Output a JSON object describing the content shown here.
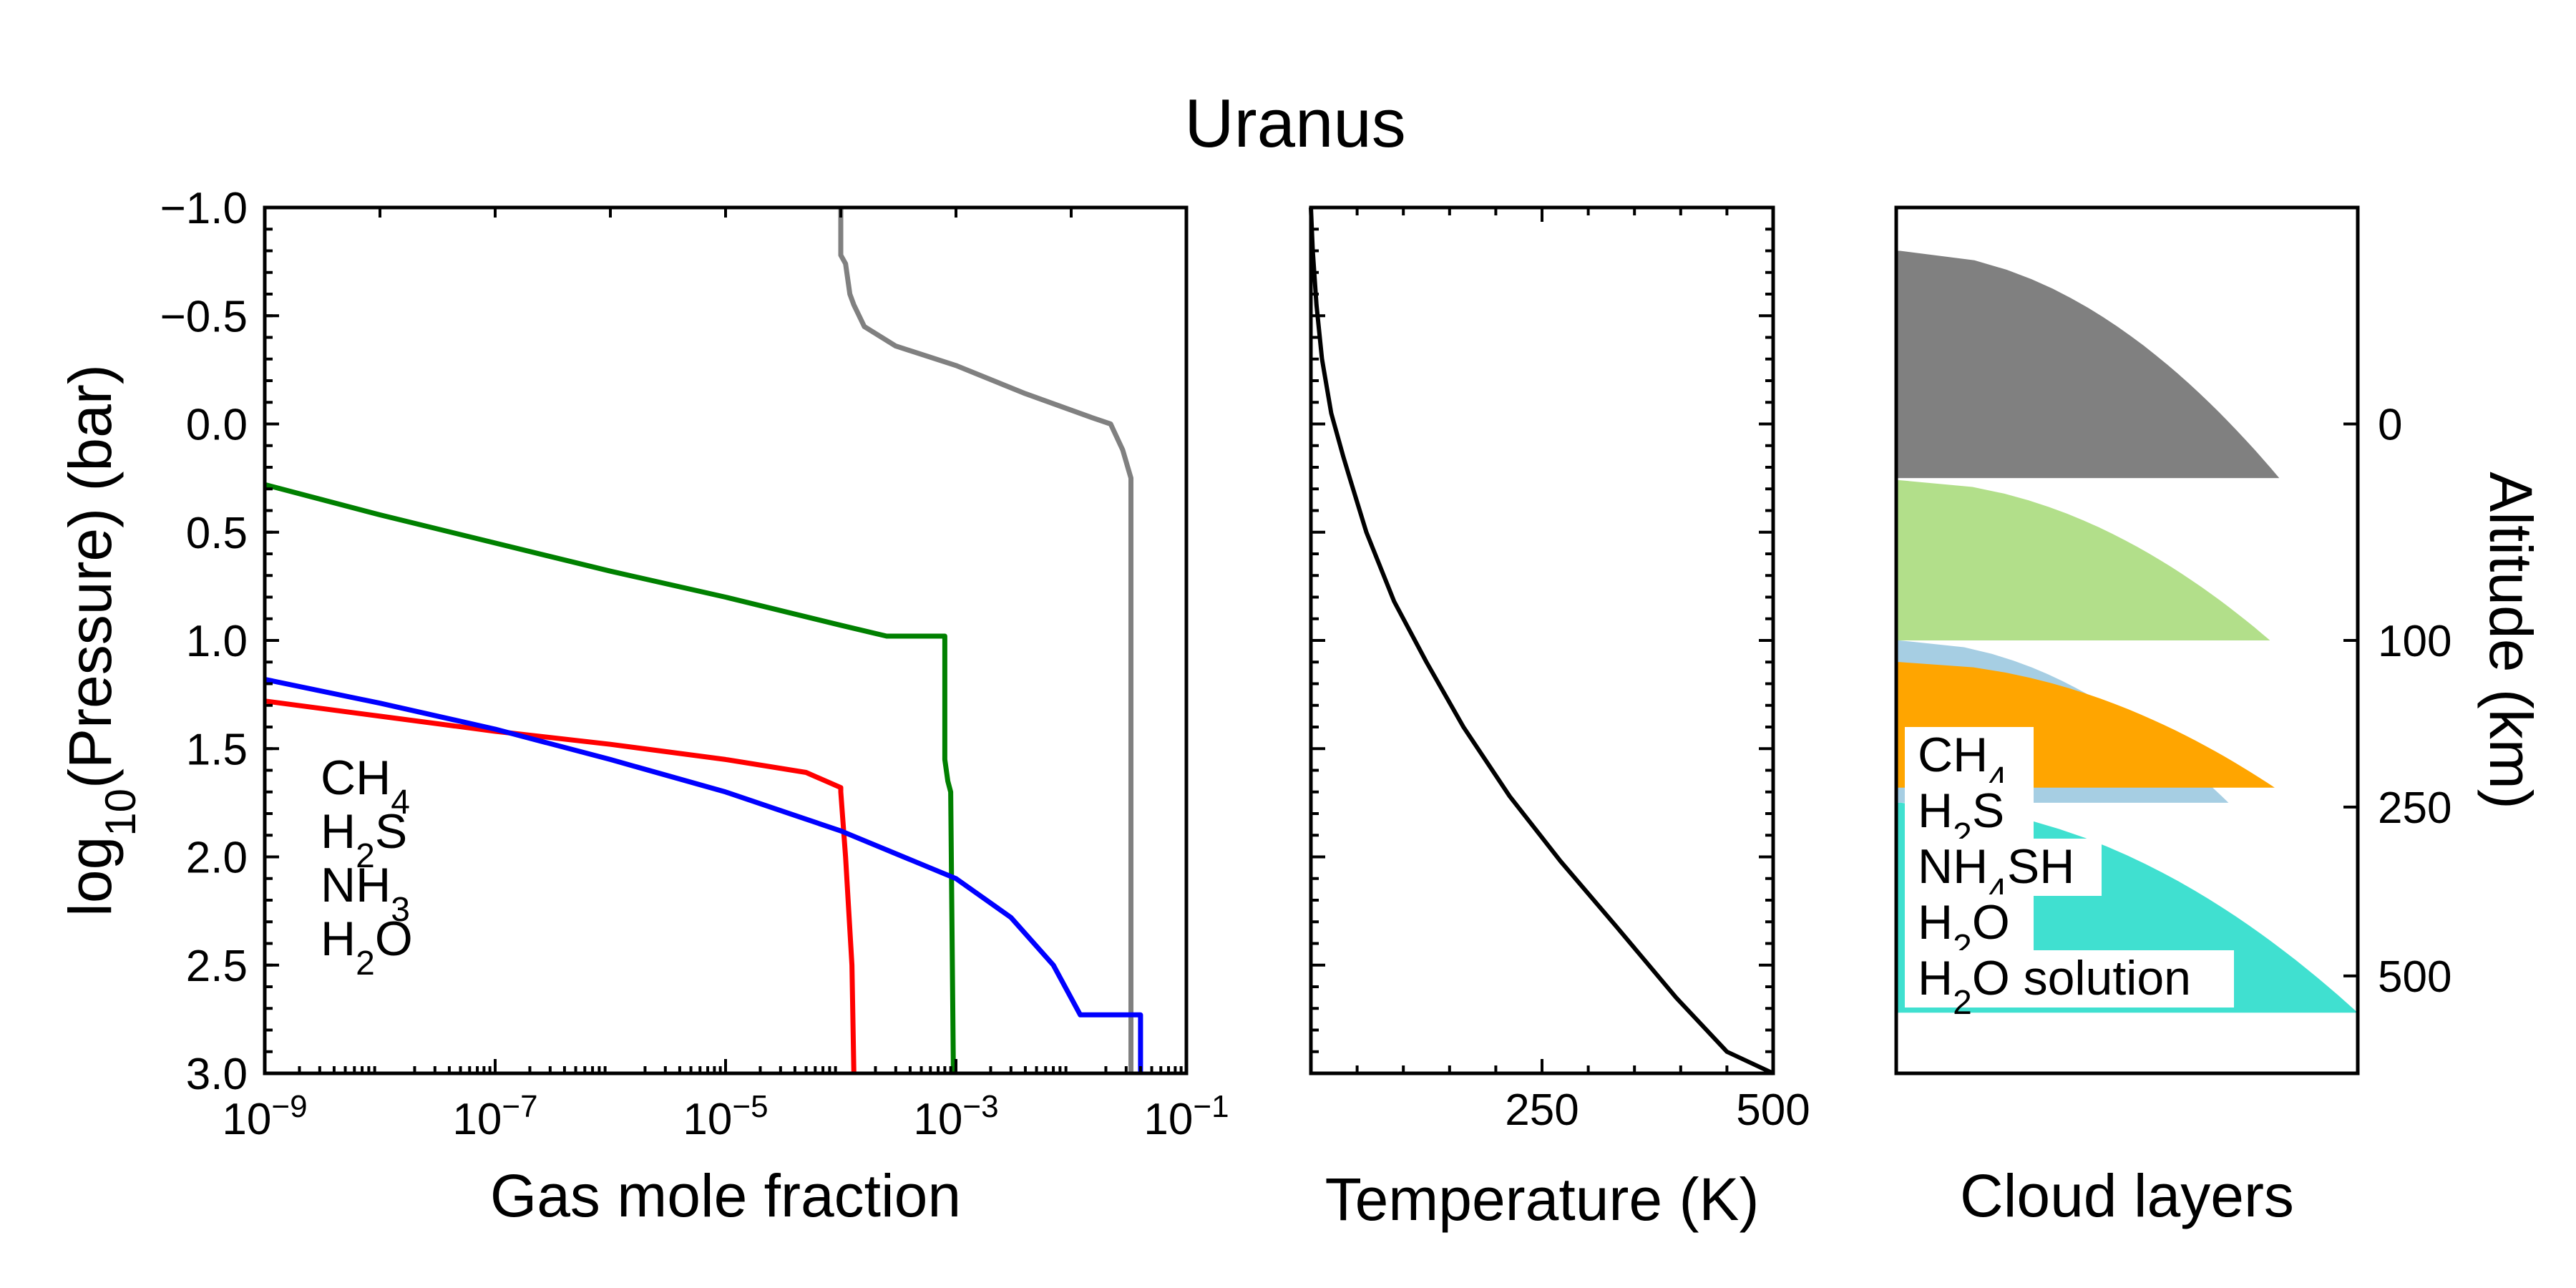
{
  "title": "Uranus",
  "chart_data": [
    {
      "type": "line",
      "panel": "gas",
      "xlabel": "Gas mole fraction",
      "ylabel": "log10(Pressure) (bar)",
      "ylabel_parts": {
        "pre": "log",
        "sub": "10",
        "post": "(Pressure) (bar)"
      },
      "xscale": "log",
      "xlim": [
        1e-09,
        0.1
      ],
      "ylim": [
        -1.0,
        3.0
      ],
      "y_inverted": true,
      "x_ticks": [
        {
          "base": "10",
          "exp": "−9",
          "value": 1e-09
        },
        {
          "base": "10",
          "exp": "−7",
          "value": 1e-07
        },
        {
          "base": "10",
          "exp": "−5",
          "value": 1e-05
        },
        {
          "base": "10",
          "exp": "−3",
          "value": 0.001
        },
        {
          "base": "10",
          "exp": "−1",
          "value": 0.1
        }
      ],
      "y_ticks": [
        {
          "label": "−1.0",
          "value": -1.0
        },
        {
          "label": "−0.5",
          "value": -0.5
        },
        {
          "label": "0.0",
          "value": 0.0
        },
        {
          "label": "0.5",
          "value": 0.5
        },
        {
          "label": "1.0",
          "value": 1.0
        },
        {
          "label": "1.5",
          "value": 1.5
        },
        {
          "label": "2.0",
          "value": 2.0
        },
        {
          "label": "2.5",
          "value": 2.5
        },
        {
          "label": "3.0",
          "value": 3.0
        }
      ],
      "legend_position": "lower-left",
      "series": [
        {
          "key": "ch4",
          "label": "CH",
          "sub": "4",
          "after": "",
          "color": "#808080",
          "points": [
            [
              0.0001,
              -1.0
            ],
            [
              0.0001,
              -0.78
            ],
            [
              0.00011,
              -0.74
            ],
            [
              0.00012,
              -0.6
            ],
            [
              0.00013,
              -0.55
            ],
            [
              0.00016,
              -0.45
            ],
            [
              0.0003,
              -0.36
            ],
            [
              0.001,
              -0.27
            ],
            [
              0.004,
              -0.14
            ],
            [
              0.015,
              -0.03
            ],
            [
              0.022,
              0.0
            ],
            [
              0.028,
              0.12
            ],
            [
              0.033,
              0.25
            ],
            [
              0.033,
              3.0
            ]
          ]
        },
        {
          "key": "h2s",
          "label": "H",
          "sub": "2",
          "after": "S",
          "color": "#008000",
          "points": [
            [
              1e-09,
              0.28
            ],
            [
              1e-08,
              0.42
            ],
            [
              1e-07,
              0.55
            ],
            [
              1e-06,
              0.68
            ],
            [
              1e-05,
              0.8
            ],
            [
              0.0001,
              0.93
            ],
            [
              0.00025,
              0.98
            ],
            [
              0.0008,
              0.98
            ],
            [
              0.0008,
              1.55
            ],
            [
              0.00085,
              1.65
            ],
            [
              0.0009,
              1.7
            ],
            [
              0.00095,
              3.0
            ]
          ]
        },
        {
          "key": "nh3",
          "label": "NH",
          "sub": "3",
          "after": "",
          "color": "#ff0000",
          "points": [
            [
              1e-09,
              1.28
            ],
            [
              1e-08,
              1.35
            ],
            [
              1e-07,
              1.42
            ],
            [
              1e-06,
              1.48
            ],
            [
              1e-05,
              1.55
            ],
            [
              5e-05,
              1.61
            ],
            [
              0.0001,
              1.68
            ],
            [
              0.0001,
              1.7
            ],
            [
              0.00011,
              2.0
            ],
            [
              0.000125,
              2.5
            ],
            [
              0.00013,
              3.0
            ]
          ]
        },
        {
          "key": "h2o",
          "label": "H",
          "sub": "2",
          "after": "O",
          "color": "#0000ff",
          "points": [
            [
              1e-09,
              1.18
            ],
            [
              1e-08,
              1.29
            ],
            [
              1e-07,
              1.41
            ],
            [
              1e-06,
              1.55
            ],
            [
              1e-05,
              1.7
            ],
            [
              0.0001,
              1.88
            ],
            [
              0.001,
              2.1
            ],
            [
              0.003,
              2.28
            ],
            [
              0.007,
              2.5
            ],
            [
              0.012,
              2.73
            ],
            [
              0.04,
              2.73
            ],
            [
              0.04,
              3.0
            ]
          ]
        }
      ]
    },
    {
      "type": "line",
      "panel": "temperature",
      "xlabel": "Temperature (K)",
      "xlim": [
        0,
        500
      ],
      "ylim": [
        -1.0,
        3.0
      ],
      "y_inverted": true,
      "x_ticks": [
        {
          "label": "250",
          "value": 250
        },
        {
          "label": "500",
          "value": 500
        }
      ],
      "series": [
        {
          "key": "T",
          "color": "#000000",
          "points": [
            [
              0,
              -1.0
            ],
            [
              2,
              -0.8
            ],
            [
              6,
              -0.55
            ],
            [
              12,
              -0.3
            ],
            [
              22,
              -0.05
            ],
            [
              35,
              0.15
            ],
            [
              42,
              0.25
            ],
            [
              60,
              0.5
            ],
            [
              90,
              0.82
            ],
            [
              125,
              1.1
            ],
            [
              165,
              1.4
            ],
            [
              215,
              1.72
            ],
            [
              270,
              2.02
            ],
            [
              330,
              2.32
            ],
            [
              395,
              2.65
            ],
            [
              450,
              2.9
            ],
            [
              500,
              3.0
            ]
          ]
        }
      ]
    },
    {
      "type": "area",
      "panel": "clouds",
      "xlabel": "Cloud layers",
      "ylabel_right": "Altitude (km)",
      "ylim": [
        -1.0,
        3.0
      ],
      "y_inverted": true,
      "right_ticks": [
        {
          "label": "0",
          "pressure": 0.0
        },
        {
          "label": "100",
          "pressure": 1.0
        },
        {
          "label": "250",
          "pressure": 1.77
        },
        {
          "label": "500",
          "pressure": 2.55
        }
      ],
      "legend_position": "lower-left",
      "layers": [
        {
          "key": "h2o_ice",
          "label": "H",
          "sub": "2",
          "after": "O",
          "color": "#a6cee3",
          "top": 1.0,
          "bottom": 1.75,
          "max_width": 0.72
        },
        {
          "key": "nh4sh",
          "label": "NH",
          "sub": "4",
          "after": "SH",
          "color": "#ffa500",
          "top": 1.1,
          "bottom": 1.68,
          "max_width": 0.82
        },
        {
          "key": "ch4",
          "label": "CH",
          "sub": "4",
          "after": "",
          "color": "#808080",
          "top": -0.8,
          "bottom": 0.25,
          "max_width": 0.83
        },
        {
          "key": "h2s",
          "label": "H",
          "sub": "2",
          "after": "S",
          "color": "#b2df8a",
          "top": 0.26,
          "bottom": 1.0,
          "max_width": 0.81
        },
        {
          "key": "h2o_sol",
          "label": "H",
          "sub": "2",
          "after": "O solution",
          "color": "#40e0d0",
          "top": 1.75,
          "bottom": 2.72,
          "max_width": 1.0
        }
      ]
    }
  ]
}
